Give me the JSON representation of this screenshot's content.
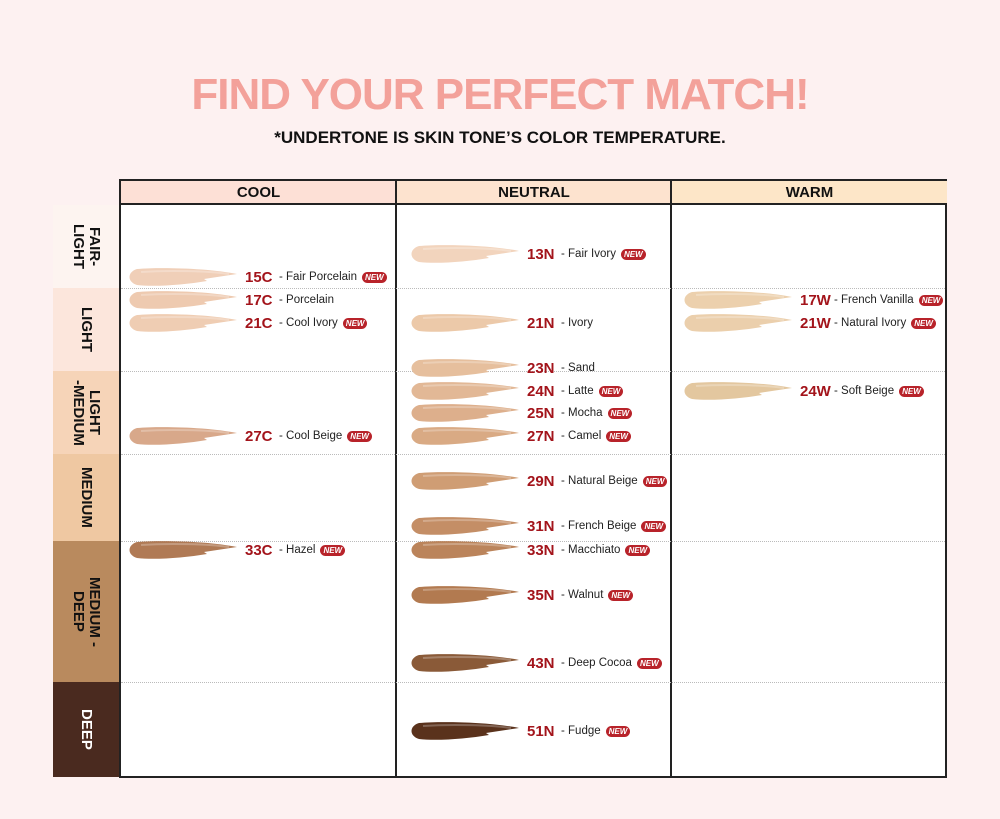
{
  "title": "FIND YOUR PERFECT MATCH!",
  "subtitle": "*UNDERTONE IS SKIN TONE’S COLOR TEMPERATURE.",
  "columns": [
    "COOL",
    "NEUTRAL",
    "WARM"
  ],
  "column_colors": [
    "#fde0d6",
    "#fde3cf",
    "#fde6c8"
  ],
  "rows": [
    {
      "label": "FAIR-\nLIGHT",
      "color": "#fdf4f0",
      "text_color": "#111"
    },
    {
      "label": "LIGHT",
      "color": "#fce6dc",
      "text_color": "#111"
    },
    {
      "label": "LIGHT\n-MEDIUM",
      "color": "#f6d4b8",
      "text_color": "#111"
    },
    {
      "label": "MEDIUM",
      "color": "#efc8a2",
      "text_color": "#111"
    },
    {
      "label": "MEDIUM -\nDEEP",
      "color": "#b98a5e",
      "text_color": "#111"
    },
    {
      "label": "DEEP",
      "color": "#4a2a1f",
      "text_color": "#fff"
    }
  ],
  "new_badge": "NEW",
  "shades": [
    {
      "code": "15C",
      "name": "- Fair Porcelain",
      "new": true,
      "color": "#f0cfb8",
      "col": 0
    },
    {
      "code": "17C",
      "name": "- Porcelain",
      "new": false,
      "color": "#eecab0",
      "col": 0
    },
    {
      "code": "21C",
      "name": "- Cool Ivory",
      "new": true,
      "color": "#efcdb3",
      "col": 0
    },
    {
      "code": "27C",
      "name": "- Cool Beige",
      "new": true,
      "color": "#d8a88a",
      "col": 0
    },
    {
      "code": "33C",
      "name": "- Hazel",
      "new": true,
      "color": "#b07a55",
      "col": 0
    },
    {
      "code": "13N",
      "name": "- Fair Ivory",
      "new": true,
      "color": "#f2d4bd",
      "col": 1
    },
    {
      "code": "21N",
      "name": "- Ivory",
      "new": false,
      "color": "#ecc9a9",
      "col": 1
    },
    {
      "code": "23N",
      "name": "- Sand",
      "new": false,
      "color": "#e6bf9d",
      "col": 1
    },
    {
      "code": "24N",
      "name": "- Latte",
      "new": true,
      "color": "#e2b896",
      "col": 1
    },
    {
      "code": "25N",
      "name": "- Mocha",
      "new": true,
      "color": "#ddaf8c",
      "col": 1
    },
    {
      "code": "27N",
      "name": "- Camel",
      "new": true,
      "color": "#d9aa84",
      "col": 1
    },
    {
      "code": "29N",
      "name": "- Natural Beige",
      "new": true,
      "color": "#cf9d74",
      "col": 1
    },
    {
      "code": "31N",
      "name": "- French Beige",
      "new": true,
      "color": "#c48e66",
      "col": 1
    },
    {
      "code": "33N",
      "name": "- Macchiato",
      "new": true,
      "color": "#bb845b",
      "col": 1
    },
    {
      "code": "35N",
      "name": "- Walnut",
      "new": true,
      "color": "#b27a50",
      "col": 1
    },
    {
      "code": "43N",
      "name": "- Deep Cocoa",
      "new": true,
      "color": "#8a5a38",
      "col": 1
    },
    {
      "code": "51N",
      "name": "- Fudge",
      "new": true,
      "color": "#5a321c",
      "col": 1
    },
    {
      "code": "17W",
      "name": "- French Vanilla",
      "new": true,
      "color": "#ecd0ad",
      "col": 2
    },
    {
      "code": "21W",
      "name": "- Natural Ivory",
      "new": true,
      "color": "#ebcfac",
      "col": 2
    },
    {
      "code": "24W",
      "name": "- Soft Beige",
      "new": true,
      "color": "#e3c79f",
      "col": 2
    }
  ]
}
